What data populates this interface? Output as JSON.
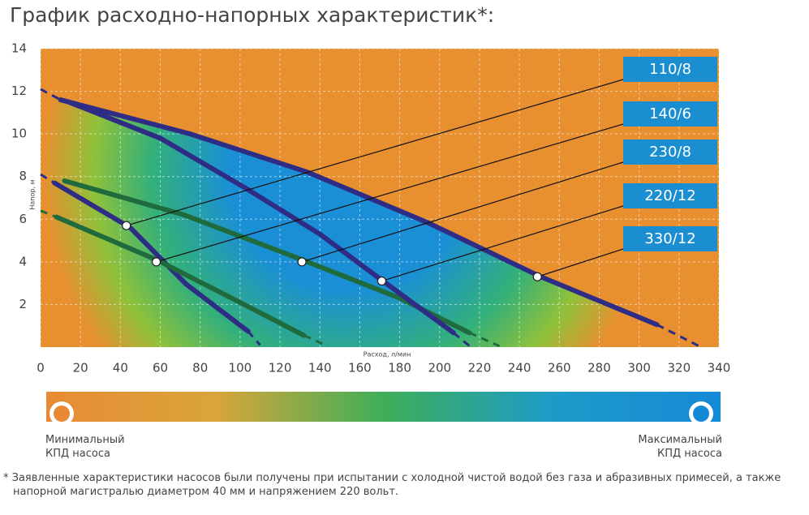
{
  "chart_data": {
    "type": "line",
    "title": "График расходно-напорных характеристик*:",
    "x_label": "Расход, л/мин",
    "y_label": "Напор, м",
    "xlim": [
      0,
      340
    ],
    "ylim": [
      0,
      14
    ],
    "xticks": [
      0,
      20,
      40,
      60,
      80,
      100,
      120,
      140,
      160,
      180,
      200,
      220,
      240,
      260,
      280,
      300,
      320,
      340
    ],
    "yticks": [
      2,
      4,
      6,
      8,
      10,
      12,
      14
    ],
    "grid": true,
    "series": [
      {
        "name": "110/8",
        "color": "#2e2c85",
        "x": [
          7,
          45,
          73,
          104
        ],
        "values": [
          7.7,
          5.6,
          2.95,
          0.74
        ],
        "label_point": [
          43,
          5.7
        ],
        "dashes": [
          {
            "x": [
              0,
              7
            ],
            "values": [
              8.1,
              7.7
            ]
          },
          {
            "x": [
              104,
              110
            ],
            "values": [
              0.74,
              0.1
            ]
          }
        ]
      },
      {
        "name": "140/6",
        "color": "#1f6b3e",
        "x": [
          8,
          58,
          102,
          132
        ],
        "values": [
          6.1,
          4.1,
          2.0,
          0.55
        ],
        "label_point": [
          58,
          4.0
        ],
        "dashes": [
          {
            "x": [
              0,
              8
            ],
            "values": [
              6.4,
              6.1
            ]
          },
          {
            "x": [
              132,
              144
            ],
            "values": [
              0.55,
              0.05
            ]
          }
        ]
      },
      {
        "name": "230/8",
        "color": "#1f6b3e",
        "x": [
          12,
          72,
          131,
          180,
          215
        ],
        "values": [
          7.8,
          6.2,
          4.1,
          2.3,
          0.67
        ],
        "label_point": [
          131,
          4.0
        ],
        "dashes": [
          {
            "x": [
              215,
              230
            ],
            "values": [
              0.67,
              0.05
            ]
          }
        ]
      },
      {
        "name": "220/12",
        "color": "#2e2c85",
        "x": [
          14,
          60,
          102,
          140,
          171,
          207
        ],
        "values": [
          11.5,
          9.8,
          7.5,
          5.3,
          3.14,
          0.67
        ],
        "label_point": [
          171,
          3.1
        ],
        "dashes": [
          {
            "x": [
              207,
              215
            ],
            "values": [
              0.67,
              0.05
            ]
          }
        ]
      },
      {
        "name": "330/12",
        "color": "#2e2c85",
        "x": [
          10,
          75,
          134,
          195,
          250,
          309
        ],
        "values": [
          11.6,
          10.0,
          8.2,
          5.8,
          3.33,
          1.05
        ],
        "label_point": [
          249,
          3.3
        ],
        "dashes": [
          {
            "x": [
              0,
              10
            ],
            "values": [
              12.1,
              11.6
            ]
          },
          {
            "x": [
              309,
              330
            ],
            "values": [
              1.05,
              0.05
            ]
          }
        ]
      }
    ],
    "efficiency_scale": {
      "min_label": "Минимальный КПД насоса",
      "max_label": "Максимальный КПД насоса"
    },
    "footnote": "* Заявленные характеристики насосов были получены при испытании с холодной чистой водой без газа и абразивных примесей, а также напорной магистралью диаметром 40 мм и напряжением 220 вольт."
  }
}
